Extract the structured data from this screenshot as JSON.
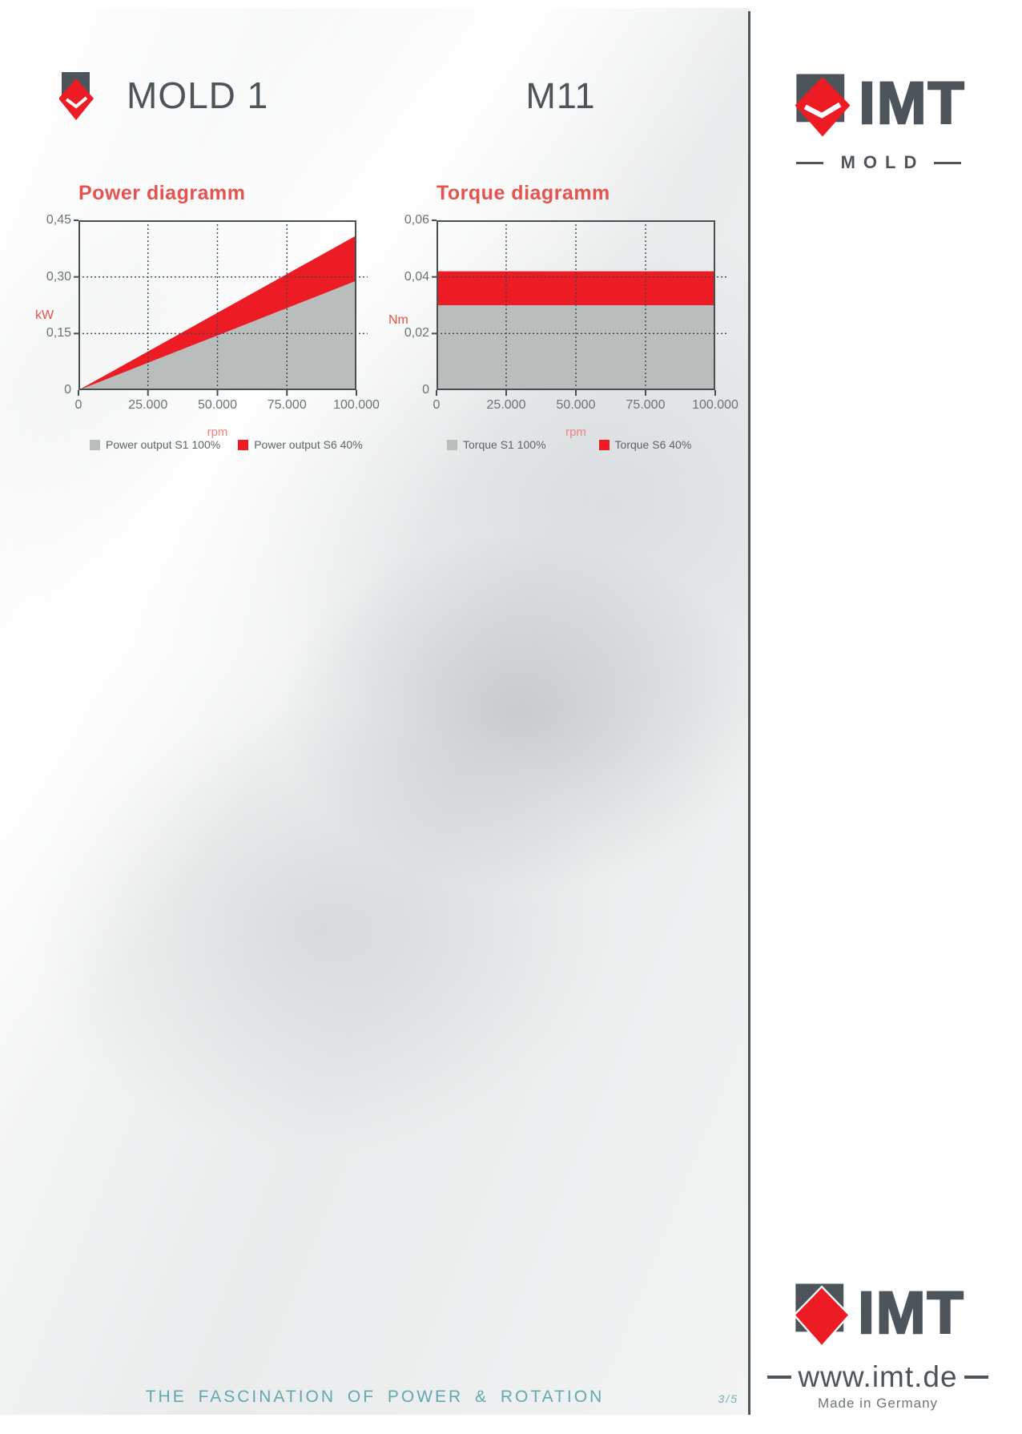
{
  "header": {
    "series_title": "MOLD 1",
    "model_code": "M11"
  },
  "sidebar": {
    "brand": "IMT",
    "brand_subline": "MOLD"
  },
  "branding_bottom": {
    "brand": "IMT",
    "website": "www.imt.de",
    "origin": "Made in Germany"
  },
  "footer": {
    "tagline": "THE FASCINATION OF POWER & ROTATION",
    "page_indicator": "3/5"
  },
  "icons": {
    "header_logo": "imt-diamond-icon",
    "brand_top_logo": "imt-diamond-chevron-icon",
    "brand_bottom_logo": "imt-diamond-icon"
  },
  "colors": {
    "accent_red": "#ed1c24",
    "chart_grey": "#b9bebd",
    "frame_grey": "#474f52",
    "brand_grey": "#4d555b",
    "title_red": "#e4534e",
    "rpm_red": "#f0837f",
    "footer_teal": "#64a8ae"
  },
  "chart_data": [
    {
      "type": "area",
      "title": "Power diagramm",
      "xlabel": "rpm",
      "ylabel": "kW",
      "xlim": [
        0,
        100000
      ],
      "ylim": [
        0,
        0.45
      ],
      "xticks": [
        0,
        25000,
        50000,
        75000,
        100000
      ],
      "xtick_labels": [
        "0",
        "25.000",
        "50.000",
        "75.000",
        "100.000"
      ],
      "yticks": [
        0,
        0.15,
        0.3,
        0.45
      ],
      "ytick_labels": [
        "0",
        "0,15",
        "0,30",
        "0,45"
      ],
      "grid": true,
      "legend_position": "bottom",
      "series": [
        {
          "name": "Power output S1 100%",
          "color": "#b9bebd",
          "x": [
            0,
            100000
          ],
          "y": [
            0,
            0.29
          ]
        },
        {
          "name": "Power output S6 40%",
          "color": "#ed1c24",
          "x": [
            0,
            100000
          ],
          "y": [
            0,
            0.41
          ]
        }
      ]
    },
    {
      "type": "area",
      "title": "Torque diagramm",
      "xlabel": "rpm",
      "ylabel": "Nm",
      "xlim": [
        0,
        100000
      ],
      "ylim": [
        0,
        0.06
      ],
      "xticks": [
        0,
        25000,
        50000,
        75000,
        100000
      ],
      "xtick_labels": [
        "0",
        "25.000",
        "50.000",
        "75.000",
        "100.000"
      ],
      "yticks": [
        0,
        0.02,
        0.04,
        0.06
      ],
      "ytick_labels": [
        "0",
        "0,02",
        "0,04",
        "0,06"
      ],
      "grid": true,
      "legend_position": "bottom",
      "series": [
        {
          "name": "Torque S1 100%",
          "color": "#b9bebd",
          "x": [
            0,
            100000
          ],
          "y": [
            0.03,
            0.03
          ]
        },
        {
          "name": "Torque S6 40%",
          "color": "#ed1c24",
          "x": [
            0,
            100000
          ],
          "y": [
            0.042,
            0.042
          ]
        }
      ]
    }
  ]
}
